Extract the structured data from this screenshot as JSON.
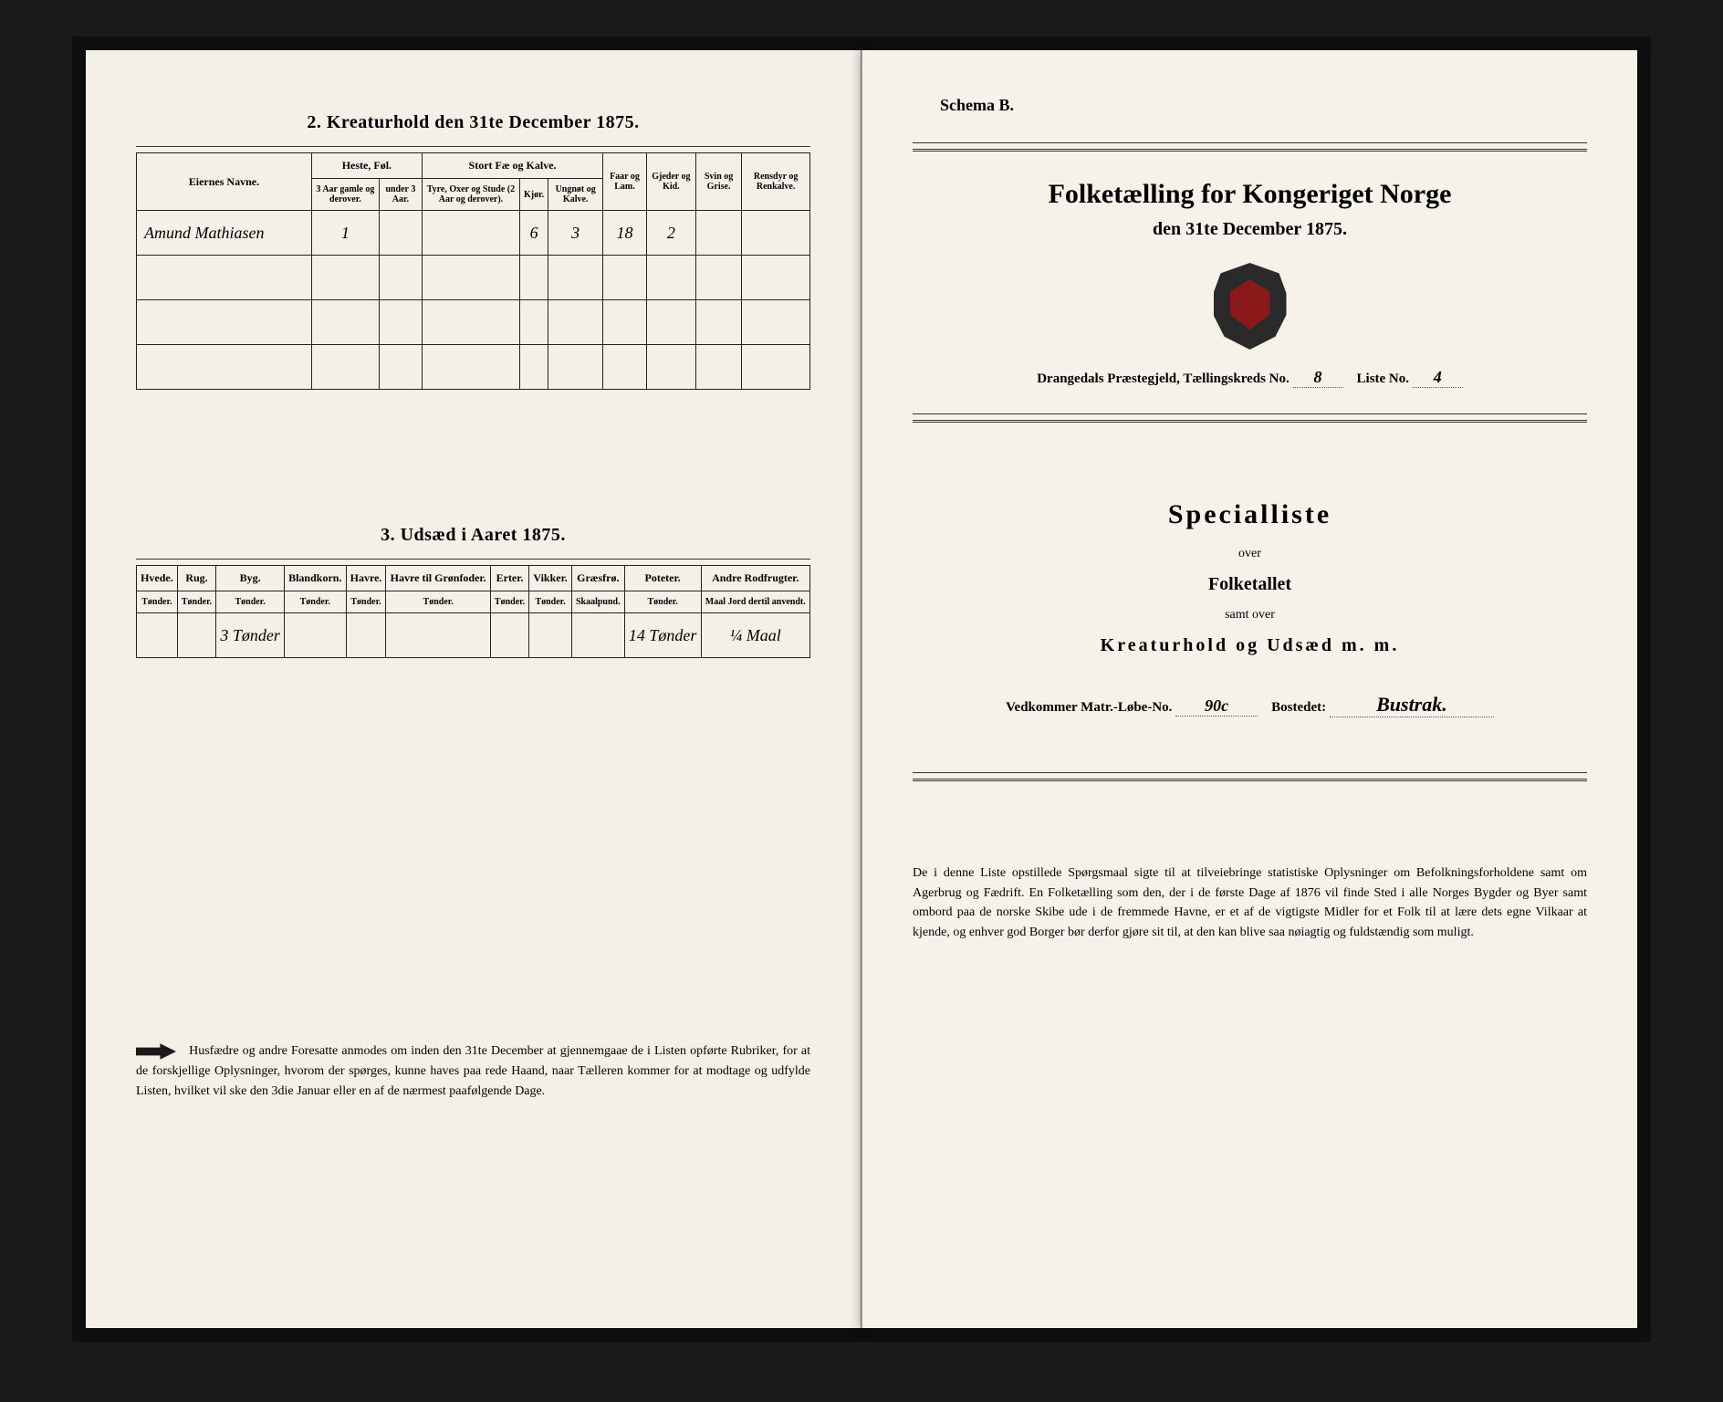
{
  "left": {
    "section2_title": "2. Kreaturhold den 31te December 1875.",
    "table2": {
      "col_owner": "Eiernes Navne.",
      "grp_horses": "Heste, Føl.",
      "grp_cattle": "Stort Fæ og Kalve.",
      "col_sheep": "Faar og Lam.",
      "col_goats": "Gjeder og Kid.",
      "col_pigs": "Svin og Grise.",
      "col_reindeer": "Rensdyr og Renkalve.",
      "sub_horse_old": "3 Aar gamle og derover.",
      "sub_horse_young": "under 3 Aar.",
      "sub_cattle_bull": "Tyre, Oxer og Stude (2 Aar og derover).",
      "sub_cattle_cow": "Kjør.",
      "sub_cattle_calf": "Ungnøt og Kalve.",
      "row1": {
        "owner": "Amund Mathiasen",
        "horse_old": "1",
        "horse_young": "",
        "bull": "",
        "cow": "6",
        "calf": "3",
        "sheep": "18",
        "goats": "2",
        "pigs": "",
        "reindeer": ""
      }
    },
    "section3_title": "3. Udsæd i Aaret 1875.",
    "table3": {
      "cols": [
        "Hvede.",
        "Rug.",
        "Byg.",
        "Blandkorn.",
        "Havre.",
        "Havre til Grønfoder.",
        "Erter.",
        "Vikker.",
        "Græsfrø.",
        "Poteter.",
        "Andre Rodfrugter."
      ],
      "subs": [
        "Tønder.",
        "Tønder.",
        "Tønder.",
        "Tønder.",
        "Tønder.",
        "Tønder.",
        "Tønder.",
        "Tønder.",
        "Skaalpund.",
        "Tønder.",
        "Maal Jord dertil anvendt."
      ],
      "row": [
        "",
        "",
        "3 Tønder",
        "",
        "",
        "",
        "",
        "",
        "",
        "14 Tønder",
        "¼ Maal"
      ]
    },
    "footnote": "Husfædre og andre Foresatte anmodes om inden den 31te December at gjennemgaae de i Listen opførte Rubriker, for at de forskjellige Oplysninger, hvorom der spørges, kunne haves paa rede Haand, naar Tælleren kommer for at modtage og udfylde Listen, hvilket vil ske den 3die Januar eller en af de nærmest paafølgende Dage."
  },
  "right": {
    "schema": "Schema B.",
    "title_line1": "Folketælling for Kongeriget Norge",
    "title_line2": "den 31te December 1875.",
    "parish_label": "Drangedals Præstegjeld, Tællingskreds No.",
    "parish_no": "8",
    "list_label": "Liste No.",
    "list_no": "4",
    "special": "Specialliste",
    "over": "over",
    "folketallet": "Folketallet",
    "samt": "samt over",
    "kreatur": "Kreaturhold og Udsæd m. m.",
    "matr_label": "Vedkommer Matr.-Løbe-No.",
    "matr_no": "90c",
    "bosted_label": "Bostedet:",
    "bosted": "Bustrak.",
    "footnote": "De i denne Liste opstillede Spørgsmaal sigte til at tilveiebringe statistiske Oplysninger om Befolkningsforholdene samt om Agerbrug og Fædrift. En Folketælling som den, der i de første Dage af 1876 vil finde Sted i alle Norges Bygder og Byer samt ombord paa de norske Skibe ude i de fremmede Havne, er et af de vigtigste Midler for et Folk til at lære dets egne Vilkaar at kjende, og enhver god Borger bør derfor gjøre sit til, at den kan blive saa nøiagtig og fuldstændig som muligt."
  }
}
